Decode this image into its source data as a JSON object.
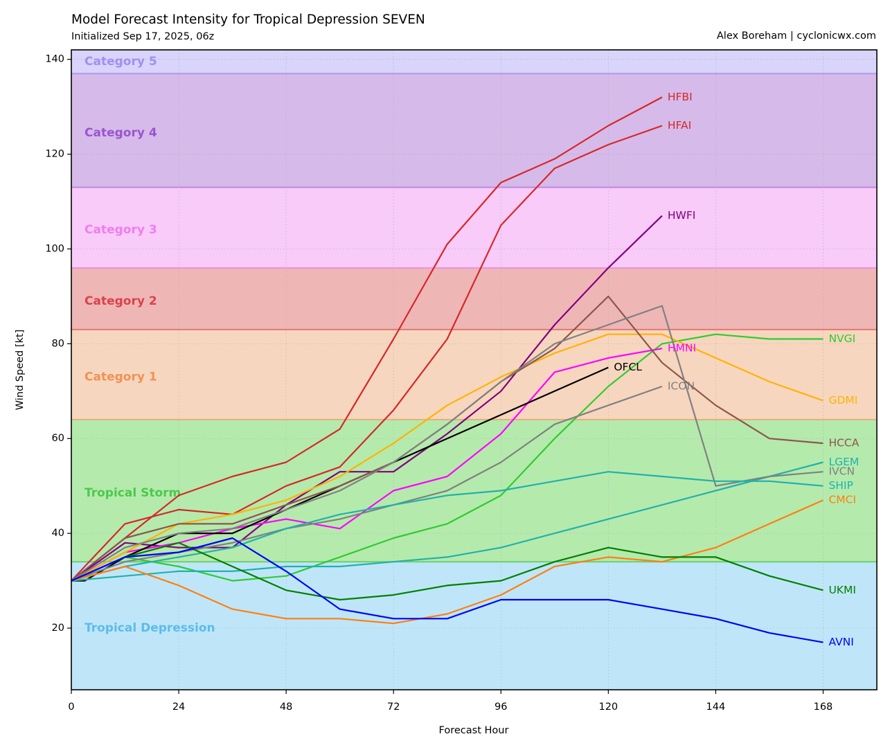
{
  "header": {
    "title": "Model Forecast Intensity for Tropical Depression SEVEN",
    "subtitle": "Initialized Sep 17, 2025, 06z",
    "credit": "Alex Boreham | cyclonicwx.com"
  },
  "chart_data": {
    "type": "line",
    "title": "Model Forecast Intensity for Tropical Depression SEVEN",
    "subtitle": "Initialized Sep 17, 2025, 06z",
    "xlabel": "Forecast Hour",
    "ylabel": "Wind Speed [kt]",
    "xlim": [
      0,
      180
    ],
    "ylim": [
      7,
      142
    ],
    "xticks": [
      0,
      24,
      48,
      72,
      96,
      120,
      144,
      168
    ],
    "yticks": [
      20,
      40,
      60,
      80,
      100,
      120,
      140
    ],
    "grid": true,
    "categories": [
      {
        "name": "Tropical Depression",
        "min": 7,
        "max": 34,
        "fill": "#bfe6f8",
        "edge": "#5bc0ea",
        "text": "#5bbde8",
        "label_y": 20
      },
      {
        "name": "Tropical Storm",
        "min": 34,
        "max": 64,
        "fill": "#b5eaad",
        "edge": "#5ccc5c",
        "text": "#4cc94c",
        "label_y": 48.5
      },
      {
        "name": "Category 1",
        "min": 64,
        "max": 83,
        "fill": "#f7d6bf",
        "edge": "#e8a86f",
        "text": "#ef9254",
        "label_y": 73
      },
      {
        "name": "Category 2",
        "min": 83,
        "max": 96,
        "fill": "#efb6b6",
        "edge": "#e06b63",
        "text": "#d9434a",
        "label_y": 89
      },
      {
        "name": "Category 3",
        "min": 96,
        "max": 113,
        "fill": "#f8cbf8",
        "edge": "#e58ae3",
        "text": "#ef7ded",
        "label_y": 104
      },
      {
        "name": "Category 4",
        "min": 113,
        "max": 137,
        "fill": "#d6baea",
        "edge": "#b77fe0",
        "text": "#9954cf",
        "label_y": 124.5
      },
      {
        "name": "Category 5",
        "min": 137,
        "max": 142,
        "fill": "#d8d4fa",
        "edge": "#a78ff0",
        "text": "#a28ef0",
        "label_y": 139.5
      }
    ],
    "series": [
      {
        "name": "HFBI",
        "color": "#d62728",
        "x": [
          0,
          12,
          24,
          36,
          48,
          60,
          72,
          84,
          96,
          108,
          120,
          132
        ],
        "y": [
          30,
          39,
          48,
          52,
          55,
          62,
          81,
          101,
          114,
          119,
          126,
          132
        ]
      },
      {
        "name": "HFAI",
        "color": "#d62728",
        "x": [
          0,
          12,
          24,
          36,
          48,
          60,
          72,
          84,
          96,
          108,
          120,
          132
        ],
        "y": [
          30,
          42,
          45,
          44,
          50,
          54,
          66,
          81,
          105,
          117,
          122,
          126
        ]
      },
      {
        "name": "HWFI",
        "color": "#800080",
        "x": [
          0,
          12,
          24,
          36,
          48,
          60,
          72,
          84,
          96,
          108,
          120,
          132
        ],
        "y": [
          30,
          38,
          37,
          37,
          46,
          53,
          53,
          61,
          70,
          84,
          96,
          107
        ]
      },
      {
        "name": "NVGI",
        "color": "#2ecc2e",
        "x": [
          0,
          12,
          24,
          36,
          48,
          60,
          72,
          84,
          96,
          108,
          120,
          132,
          144,
          156,
          168
        ],
        "y": [
          30,
          35,
          33,
          30,
          31,
          35,
          39,
          42,
          48,
          60,
          71,
          80,
          82,
          81,
          81
        ]
      },
      {
        "name": "HMNI",
        "color": "#ff00ff",
        "x": [
          0,
          12,
          24,
          36,
          48,
          60,
          72,
          84,
          96,
          108,
          120,
          132
        ],
        "y": [
          30,
          36,
          38,
          41,
          43,
          41,
          49,
          52,
          61,
          74,
          77,
          79
        ]
      },
      {
        "name": "OFCL",
        "color": "#000000",
        "x": [
          0,
          3,
          12,
          24,
          36,
          48,
          60,
          72,
          84,
          96,
          108,
          120
        ],
        "y": [
          30,
          30,
          35,
          40,
          40,
          45,
          50,
          55,
          60,
          65,
          70,
          75
        ]
      },
      {
        "name": "ICON",
        "color": "#808080",
        "x": [
          0,
          12,
          24,
          36,
          48,
          60,
          72,
          84,
          96,
          108,
          120,
          132
        ],
        "y": [
          30,
          34,
          36,
          38,
          41,
          43,
          46,
          49,
          55,
          63,
          67,
          71
        ]
      },
      {
        "name": "GDMI",
        "color": "#ffb300",
        "x": [
          0,
          12,
          24,
          36,
          48,
          60,
          72,
          84,
          96,
          108,
          120,
          132,
          144,
          156,
          168
        ],
        "y": [
          30,
          36,
          42,
          44,
          47,
          52,
          59,
          67,
          73,
          78,
          82,
          82,
          77,
          72,
          68
        ]
      },
      {
        "name": "HCCA",
        "color": "#8c564b",
        "x": [
          0,
          12,
          24,
          36,
          48,
          60,
          72,
          84,
          96,
          108,
          120,
          132,
          144,
          156,
          168
        ],
        "y": [
          30,
          39,
          42,
          42,
          46,
          50,
          55,
          63,
          72,
          79,
          90,
          76,
          67,
          60,
          59
        ]
      },
      {
        "name": "LGEM",
        "color": "#20b2aa",
        "x": [
          0,
          12,
          24,
          36,
          48,
          60,
          72,
          84,
          96,
          108,
          120,
          132,
          144,
          156,
          168
        ],
        "y": [
          30,
          31,
          32,
          32,
          33,
          33,
          34,
          35,
          37,
          40,
          43,
          46,
          49,
          52,
          55
        ]
      },
      {
        "name": "IVCN",
        "color": "#808080",
        "x": [
          0,
          12,
          24,
          36,
          48,
          60,
          72,
          84,
          96,
          108,
          120,
          132,
          144,
          156,
          168
        ],
        "y": [
          30,
          37,
          40,
          41,
          45,
          49,
          55,
          63,
          72,
          80,
          84,
          88,
          50,
          52,
          53
        ]
      },
      {
        "name": "SHIP",
        "color": "#20b2aa",
        "x": [
          0,
          12,
          24,
          36,
          48,
          60,
          72,
          84,
          96,
          108,
          120,
          132,
          144,
          156,
          168
        ],
        "y": [
          30,
          33,
          35,
          37,
          41,
          44,
          46,
          48,
          49,
          51,
          53,
          52,
          51,
          51,
          50
        ]
      },
      {
        "name": "CMCI",
        "color": "#ff7f0e",
        "x": [
          0,
          12,
          24,
          36,
          48,
          60,
          72,
          84,
          96,
          108,
          120,
          132,
          144,
          156,
          168
        ],
        "y": [
          30,
          33,
          29,
          24,
          22,
          22,
          21,
          23,
          27,
          33,
          35,
          34,
          37,
          42,
          47
        ]
      },
      {
        "name": "UKMI",
        "color": "#008000",
        "x": [
          0,
          12,
          24,
          36,
          48,
          60,
          72,
          84,
          96,
          108,
          120,
          132,
          144,
          156,
          168
        ],
        "y": [
          30,
          35,
          38,
          33,
          28,
          26,
          27,
          29,
          30,
          34,
          37,
          35,
          35,
          31,
          28
        ]
      },
      {
        "name": "AVNI",
        "color": "#0000ff",
        "x": [
          0,
          12,
          24,
          36,
          48,
          60,
          72,
          84,
          96,
          108,
          120,
          132,
          144,
          156,
          168
        ],
        "y": [
          30,
          35,
          36,
          39,
          32,
          24,
          22,
          22,
          26,
          26,
          26,
          24,
          22,
          19,
          17
        ]
      }
    ],
    "end_labels": [
      {
        "name": "HFBI",
        "color": "#d62728",
        "x": 132,
        "y": 132
      },
      {
        "name": "HFAI",
        "color": "#d62728",
        "x": 132,
        "y": 126
      },
      {
        "name": "HWFI",
        "color": "#800080",
        "x": 132,
        "y": 107
      },
      {
        "name": "NVGI",
        "color": "#2ecc2e",
        "x": 168,
        "y": 81
      },
      {
        "name": "HMNI",
        "color": "#ff00ff",
        "x": 132,
        "y": 79
      },
      {
        "name": "OFCL",
        "color": "#000000",
        "x": 120,
        "y": 75
      },
      {
        "name": "ICON",
        "color": "#808080",
        "x": 132,
        "y": 71
      },
      {
        "name": "GDMI",
        "color": "#ffb300",
        "x": 168,
        "y": 68
      },
      {
        "name": "HCCA",
        "color": "#8c564b",
        "x": 168,
        "y": 59
      },
      {
        "name": "LGEM",
        "color": "#20b2aa",
        "x": 168,
        "y": 55
      },
      {
        "name": "IVCN",
        "color": "#808080",
        "x": 168,
        "y": 53
      },
      {
        "name": "SHIP",
        "color": "#20b2aa",
        "x": 168,
        "y": 50
      },
      {
        "name": "CMCI",
        "color": "#ff7f0e",
        "x": 168,
        "y": 47
      },
      {
        "name": "UKMI",
        "color": "#008000",
        "x": 168,
        "y": 28
      },
      {
        "name": "AVNI",
        "color": "#0000ff",
        "x": 168,
        "y": 17
      }
    ]
  }
}
